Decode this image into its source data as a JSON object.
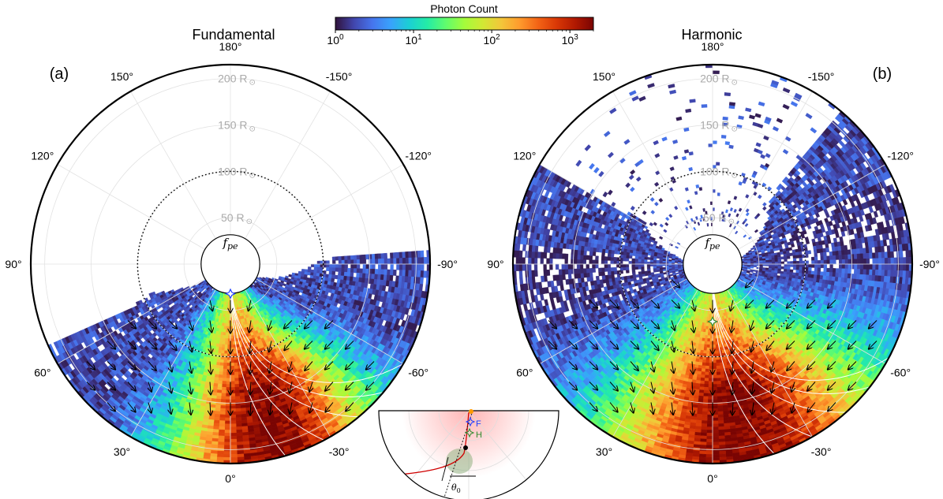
{
  "colorbar": {
    "title": "Photon Count",
    "scale": "log",
    "range": [
      1,
      2000
    ],
    "tick_labels": [
      {
        "base": "10",
        "exp": "0",
        "value": 1
      },
      {
        "base": "10",
        "exp": "1",
        "value": 10
      },
      {
        "base": "10",
        "exp": "2",
        "value": 100
      },
      {
        "base": "10",
        "exp": "3",
        "value": 1000
      }
    ],
    "colormap": [
      "#30123b",
      "#4145ab",
      "#4675ed",
      "#39a2fc",
      "#1bcfd4",
      "#24eca6",
      "#61fc6c",
      "#a4fc3b",
      "#d1e834",
      "#f3c63a",
      "#fe9b2d",
      "#f36315",
      "#d93806",
      "#b11901",
      "#7a0402"
    ]
  },
  "chart_data": [
    {
      "type": "heatmap",
      "projection": "polar",
      "panel_label": "(a)",
      "title": "Fundamental",
      "emission": "F",
      "angle_ticks": [
        "0°",
        "30°",
        "60°",
        "90°",
        "120°",
        "150°",
        "180°",
        "-150°",
        "-120°",
        "-90°",
        "-60°",
        "-30°"
      ],
      "angle_tick_values": [
        0,
        30,
        60,
        90,
        120,
        150,
        180,
        -150,
        -120,
        -90,
        -60,
        -30
      ],
      "radial_ticks": [
        {
          "value": 50,
          "label": "50 R",
          "unit": "⊙"
        },
        {
          "value": 100,
          "label": "100 R",
          "unit": "⊙"
        },
        {
          "value": 150,
          "label": "150 R",
          "unit": "⊙"
        },
        {
          "value": 200,
          "label": "200 R",
          "unit": "⊙"
        }
      ],
      "r_max_rsun": 215,
      "inner_circle": {
        "label": "f",
        "subscript": "pe",
        "radius_rsun": 18
      },
      "dotted_circle_radius_rsun": 100,
      "source_marker": {
        "symbol": "star",
        "angle_deg": 0,
        "r_rsun": 20,
        "color": "#1f3fff"
      },
      "beam_direction_deg": 0,
      "beam_spread_deg": 45,
      "beam_skew_deg": -14,
      "beam_peak_log10_count": 3.3,
      "arrows": "outward, converging to 0° direction"
    },
    {
      "type": "heatmap",
      "projection": "polar",
      "panel_label": "(b)",
      "title": "Harmonic",
      "emission": "H",
      "angle_ticks": [
        "0°",
        "30°",
        "60°",
        "90°",
        "120°",
        "150°",
        "180°",
        "-150°",
        "-120°",
        "-90°",
        "-60°",
        "-30°"
      ],
      "angle_tick_values": [
        0,
        30,
        60,
        90,
        120,
        150,
        180,
        -150,
        -120,
        -90,
        -60,
        -30
      ],
      "radial_ticks": [
        {
          "value": 50,
          "label": "50 R",
          "unit": "⊙"
        },
        {
          "value": 100,
          "label": "100 R",
          "unit": "⊙"
        },
        {
          "value": 150,
          "label": "150 R",
          "unit": "⊙"
        },
        {
          "value": 200,
          "label": "200 R",
          "unit": "⊙"
        }
      ],
      "r_max_rsun": 215,
      "inner_circle": {
        "label": "f",
        "subscript": "pe",
        "radius_rsun": 18
      },
      "dotted_circle_radius_rsun": 100,
      "source_marker": {
        "symbol": "star",
        "angle_deg": 0,
        "r_rsun": 38,
        "color": "#2e8b2e"
      },
      "beam_direction_deg": 0,
      "beam_spread_deg": 70,
      "beam_skew_deg": -10,
      "beam_peak_log10_count": 3.3,
      "arrows": "outward, converging to 0° direction"
    }
  ],
  "inset": {
    "labels": {
      "fundamental": "F",
      "harmonic": "H",
      "angle": "θ",
      "angle_subscript": "0"
    },
    "colors": {
      "fundamental": "#1f3fff",
      "harmonic": "#2e8b2e",
      "sun": "#ff9a00",
      "field_line": "#d00000"
    }
  }
}
